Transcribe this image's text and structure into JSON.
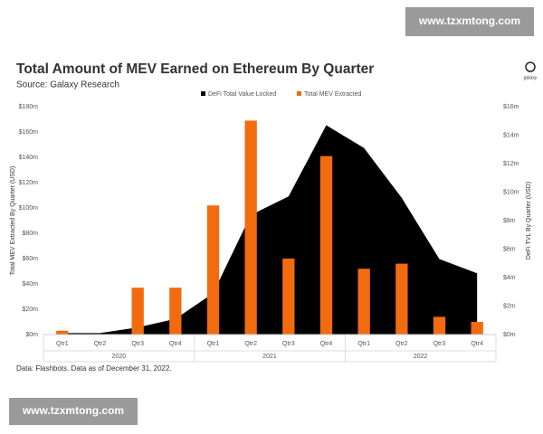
{
  "chart_data": {
    "type": "bar",
    "title": "Total Amount of MEV Earned on Ethereum By Quarter",
    "subtitle": "Source: Galaxy Research",
    "logo": "galaxy",
    "ylabel": "Total MEV Extracted By Quarter (USD)",
    "y2label": "DeFi TVL By Quarter (USD)",
    "footnote": "Data: Flashbots. Data as of December 31, 2022.",
    "watermarks": [
      "www.tzxmtong.com",
      "www.tzxmtong.com"
    ],
    "categories": [
      "Qtr1",
      "Qtr2",
      "Qtr3",
      "Qtr4",
      "Qtr1",
      "Qtr2",
      "Qtr3",
      "Qtr4",
      "Qtr1",
      "Qtr2",
      "Qtr3",
      "Qtr4"
    ],
    "x_groups": [
      "2020",
      "2021",
      "2022"
    ],
    "series": [
      {
        "name": "DeFi Total Value Locked",
        "type": "area",
        "axis": "y2",
        "color": "#000000",
        "values": [
          0.1,
          0.1,
          0.5,
          1.1,
          2.9,
          8.4,
          9.7,
          14.7,
          13.1,
          9.6,
          5.3,
          4.3
        ]
      },
      {
        "name": "Total MEV Extracted",
        "type": "bar",
        "color": "#f26b0f",
        "values": [
          3,
          0,
          37,
          37,
          102,
          169,
          60,
          141,
          52,
          56,
          14,
          10
        ]
      }
    ],
    "ylim": [
      0,
      180
    ],
    "yticks": [
      {
        "value": 0,
        "label": "$0m"
      },
      {
        "value": 20,
        "label": "$20m"
      },
      {
        "value": 40,
        "label": "$40m"
      },
      {
        "value": 60,
        "label": "$60m"
      },
      {
        "value": 80,
        "label": "$80m"
      },
      {
        "value": 100,
        "label": "$100m"
      },
      {
        "value": 120,
        "label": "$120m"
      },
      {
        "value": 140,
        "label": "$140m"
      },
      {
        "value": 160,
        "label": "$160m"
      },
      {
        "value": 180,
        "label": "$180m"
      }
    ],
    "y2lim": [
      0,
      16
    ],
    "y2ticks": [
      {
        "value": 0,
        "label": "$0m"
      },
      {
        "value": 2,
        "label": "$2m"
      },
      {
        "value": 4,
        "label": "$4m"
      },
      {
        "value": 6,
        "label": "$6m"
      },
      {
        "value": 8,
        "label": "$8m"
      },
      {
        "value": 10,
        "label": "$10m"
      },
      {
        "value": 12,
        "label": "$12m"
      },
      {
        "value": 14,
        "label": "$14m"
      },
      {
        "value": 16,
        "label": "$16m"
      }
    ],
    "grid": false
  }
}
